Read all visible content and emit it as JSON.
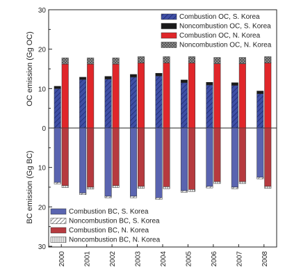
{
  "chart_data": {
    "type": "bar",
    "categories": [
      "2000",
      "2001",
      "2002",
      "2003",
      "2004",
      "2005",
      "2006",
      "2007",
      "2008"
    ],
    "upper_axis": {
      "ylabel": "OC emission (Gg OC)",
      "ylim": [
        0,
        30
      ],
      "ticks": [
        "0",
        "10",
        "20",
        "30"
      ]
    },
    "lower_axis": {
      "ylabel": "BC emission (Gg BC)",
      "ylim": [
        0,
        30
      ],
      "ticks": [
        "10",
        "20",
        "30"
      ]
    },
    "series": [
      {
        "name": "Combustion OC, S. Korea",
        "group": "oc_skorea",
        "fill": "#3f4fa6",
        "pattern": "hatch-diag",
        "values": [
          10.0,
          12.3,
          12.4,
          12.9,
          13.2,
          11.5,
          10.9,
          10.8,
          8.7
        ]
      },
      {
        "name": "Noncombustion OC, S. Korea",
        "group": "oc_skorea",
        "fill": "#1a1a1a",
        "pattern": "solid",
        "values": [
          0.6,
          0.6,
          0.7,
          0.7,
          0.7,
          0.7,
          0.7,
          0.7,
          0.7
        ]
      },
      {
        "name": "Combustion OC, N. Korea",
        "group": "oc_nkorea",
        "fill": "#e0262a",
        "pattern": "solid",
        "values": [
          16.2,
          16.2,
          16.2,
          16.5,
          16.5,
          16.5,
          16.3,
          16.3,
          16.5
        ]
      },
      {
        "name": "Noncombustion OC, N. Korea",
        "group": "oc_nkorea",
        "fill": "#8a8a8a",
        "pattern": "crosshatch",
        "values": [
          1.6,
          1.6,
          1.6,
          1.6,
          1.6,
          1.6,
          1.6,
          1.6,
          1.6
        ]
      },
      {
        "name": "Combustion BC, S. Korea",
        "group": "bc_skorea",
        "fill": "#5a64b0",
        "pattern": "solid",
        "values": [
          13.8,
          16.5,
          17.3,
          17.3,
          17.7,
          15.9,
          14.8,
          15.0,
          12.5
        ]
      },
      {
        "name": "Noncombustion BC, S. Korea",
        "group": "bc_skorea",
        "fill": "#ffffff",
        "pattern": "hatch-diag-dark",
        "values": [
          0.4,
          0.4,
          0.4,
          0.4,
          0.4,
          0.4,
          0.4,
          0.4,
          0.4
        ]
      },
      {
        "name": "Combustion BC, N. Korea",
        "group": "bc_nkorea",
        "fill": "#b63a3f",
        "pattern": "solid",
        "values": [
          14.6,
          15.0,
          14.6,
          14.8,
          14.9,
          15.6,
          13.6,
          13.6,
          14.8
        ]
      },
      {
        "name": "Noncombustion BC, N. Korea",
        "group": "bc_nkorea",
        "fill": "#ffffff",
        "pattern": "vertical-lines",
        "values": [
          0.5,
          0.5,
          0.5,
          0.5,
          0.5,
          0.5,
          0.5,
          0.5,
          0.5
        ]
      }
    ],
    "legend_upper": {
      "placement": "top-right",
      "entries": [
        "Combustion OC, S. Korea",
        "Noncombustion OC, S. Korea",
        "Combustion OC, N. Korea",
        "Noncombustion OC, N. Korea"
      ]
    },
    "legend_lower": {
      "placement": "bottom-left",
      "entries": [
        "Combustion BC, S. Korea",
        "Noncombustion BC, S. Korea",
        "Combustion BC, N. Korea",
        "Noncombustion BC, N. Korea"
      ]
    },
    "grid": false
  }
}
